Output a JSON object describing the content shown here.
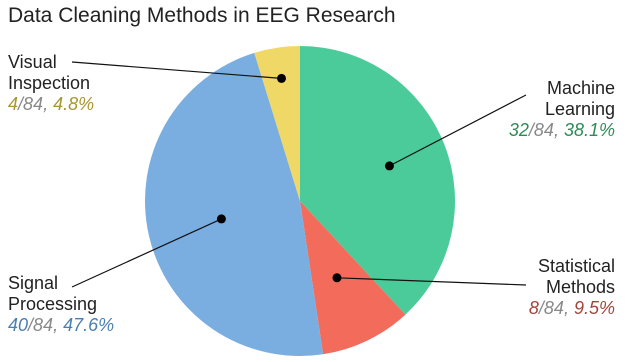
{
  "chart_data": {
    "type": "pie",
    "title": "Data Cleaning Methods in EEG Research",
    "total": 84,
    "slices": [
      {
        "label_lines": [
          "Machine",
          "Learning"
        ],
        "count": 32,
        "percent": "38.1%",
        "color": "#4ccb9a",
        "text_color": "#2e8b57"
      },
      {
        "label_lines": [
          "Statistical",
          "Methods"
        ],
        "count": 8,
        "percent": "9.5%",
        "color": "#f26b5b",
        "text_color": "#a3453a"
      },
      {
        "label_lines": [
          "Signal",
          "Processing"
        ],
        "count": 40,
        "percent": "47.6%",
        "color": "#7aaee0",
        "text_color": "#4a7fb0"
      },
      {
        "label_lines": [
          "Visual",
          "Inspection"
        ],
        "count": 4,
        "percent": "4.8%",
        "color": "#f0d866",
        "text_color": "#a8962e"
      }
    ],
    "start_angle_deg": 0,
    "direction": "clockwise"
  }
}
